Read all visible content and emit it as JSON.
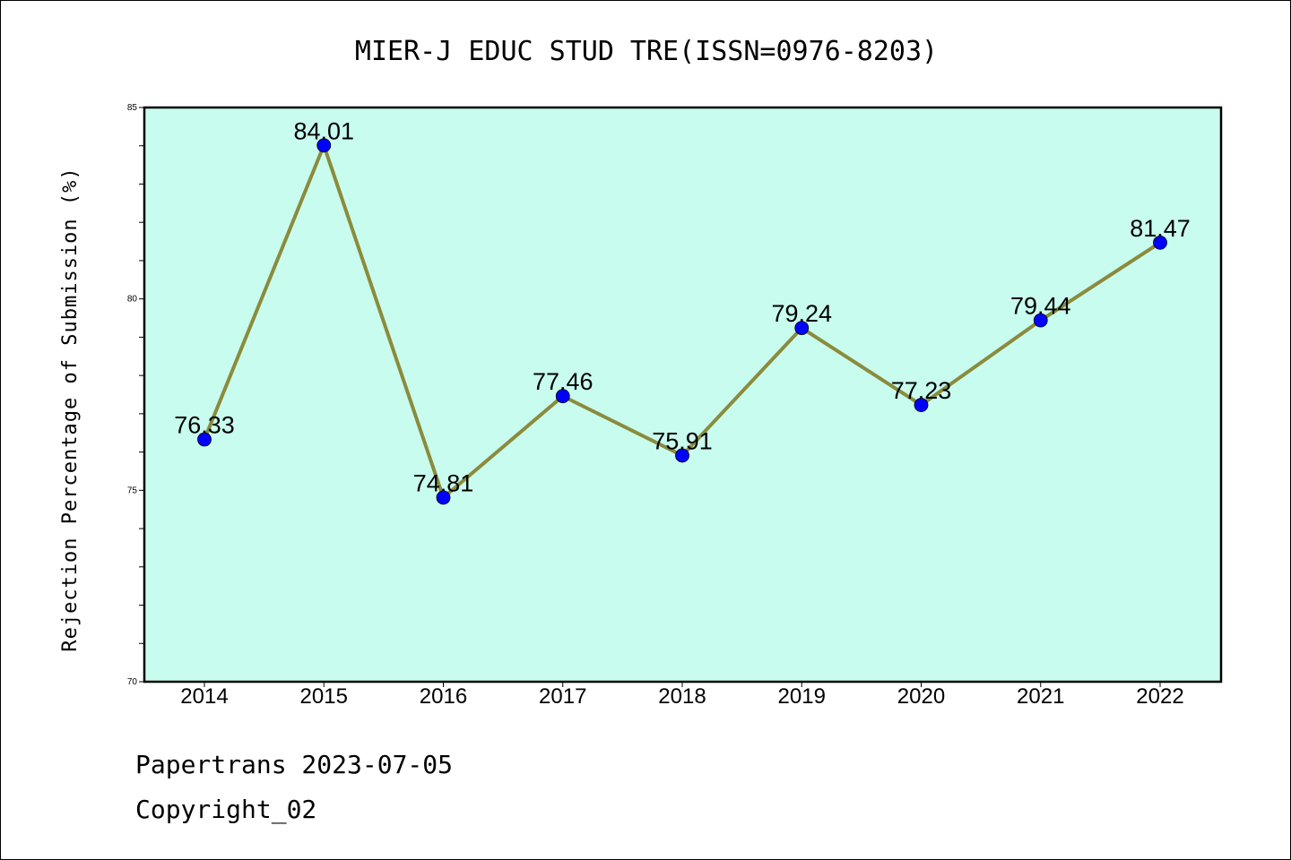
{
  "footer": {
    "source": "Papertrans 2023-07-05",
    "copyright": "Copyright_02"
  },
  "colors": {
    "plot_background": "#c8fcee",
    "line": "#8b8b3c",
    "marker": "#0000ff"
  },
  "chart_data": {
    "type": "line",
    "title": "MIER-J EDUC STUD TRE(ISSN=0976-8203)",
    "xlabel": "",
    "ylabel": "Rejection Percentage of Submission (%)",
    "categories": [
      "2014",
      "2015",
      "2016",
      "2017",
      "2018",
      "2019",
      "2020",
      "2021",
      "2022"
    ],
    "series": [
      {
        "values": [
          76.33,
          84.01,
          74.81,
          77.46,
          75.91,
          79.24,
          77.23,
          79.44,
          81.47
        ]
      }
    ],
    "data_labels": [
      "76.33",
      "84.01",
      "74.81",
      "77.46",
      "75.91",
      "79.24",
      "77.23",
      "79.44",
      "81.47"
    ],
    "ylim": [
      70,
      85
    ],
    "yticks": [
      70,
      75,
      80,
      85
    ],
    "grid": false,
    "legend": "none"
  }
}
